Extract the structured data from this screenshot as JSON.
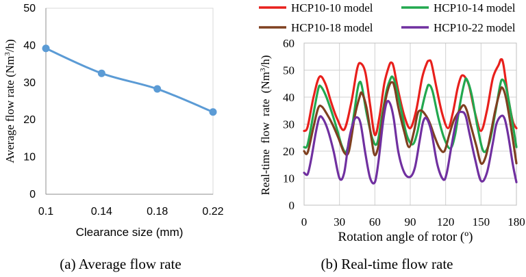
{
  "chart_data": [
    {
      "type": "line",
      "xlabel": "Clearance size (mm)",
      "ylabel": "Average flow rate (Nm³/h)",
      "ylabel_main": "Average flow rate (Nm",
      "ylabel_sup": "3",
      "ylabel_end": "/h)",
      "caption": "(a) Average flow rate",
      "categories": [
        "0.1",
        "0.14",
        "0.18",
        "0.22"
      ],
      "ylim": [
        0,
        50
      ],
      "yticks": [
        0,
        10,
        20,
        30,
        40,
        50
      ],
      "series": [
        {
          "name": "Average flow rate",
          "values": [
            39.2,
            32.5,
            28.3,
            22.1
          ],
          "color": "#5b9bd5"
        }
      ]
    },
    {
      "type": "line",
      "xlabel": "Rotation angle of rotor (º)",
      "ylabel": "Real-time flow rate (Nm³/h)",
      "ylabel_main": "Real-time  flow  rate  (Nm",
      "ylabel_sup": "3",
      "ylabel_end": "/h)",
      "caption": "(b) Real-time flow rate",
      "xlim": [
        0,
        180
      ],
      "xticks": [
        0,
        30,
        60,
        90,
        120,
        150,
        180
      ],
      "ylim": [
        0,
        60
      ],
      "yticks": [
        0,
        10,
        20,
        30,
        40,
        50,
        60
      ],
      "series": [
        {
          "name": "HCP10-10 model",
          "color": "#e8201c",
          "x": [
            0,
            3,
            8,
            13,
            18,
            23,
            28,
            34,
            40,
            45,
            48,
            52,
            56,
            60,
            64,
            68,
            72,
            74,
            76,
            80,
            85,
            90,
            95,
            100,
            104,
            106,
            108,
            112,
            117,
            122,
            126,
            130,
            133,
            135,
            137,
            140,
            145,
            150,
            155,
            160,
            165,
            167,
            169,
            173,
            177,
            180
          ],
          "y": [
            27.5,
            29,
            40,
            47.5,
            45,
            38,
            32,
            28,
            38,
            50.5,
            52.5,
            49,
            37,
            26,
            33,
            45,
            51.5,
            52.8,
            51,
            42,
            33,
            28.5,
            35,
            47,
            52.5,
            53.5,
            52.5,
            44,
            34,
            28.5,
            34,
            43,
            47.5,
            48,
            47,
            44,
            34,
            27.5,
            35,
            47,
            52,
            54,
            52,
            40,
            31,
            28.5
          ]
        },
        {
          "name": "HCP10-14 model",
          "color": "#22a84f",
          "x": [
            0,
            3,
            8,
            12,
            14,
            18,
            23,
            28,
            32,
            36,
            41,
            45,
            47,
            49,
            53,
            58,
            62,
            66,
            70,
            73,
            75,
            78,
            82,
            87,
            92,
            96,
            100,
            104,
            106,
            109,
            114,
            119,
            124,
            128,
            132,
            136,
            138,
            142,
            147,
            152,
            157,
            162,
            166,
            168,
            171,
            175,
            180
          ],
          "y": [
            21.5,
            22.5,
            34,
            43,
            44,
            41,
            35,
            28,
            22,
            20,
            30,
            42,
            45.5,
            44,
            34,
            24.5,
            23,
            33,
            42.5,
            46.5,
            47.5,
            44,
            36,
            26,
            22.5,
            27,
            36,
            43,
            44.5,
            42,
            32,
            24.5,
            21,
            26,
            37,
            45.5,
            46.5,
            41,
            29,
            20,
            23,
            34,
            44,
            46.5,
            44,
            35,
            21.5
          ]
        },
        {
          "name": "HCP10-18 model",
          "color": "#7f4020",
          "x": [
            0,
            3,
            8,
            12,
            15,
            19,
            24,
            29,
            34,
            38,
            43,
            47,
            49,
            53,
            57,
            60,
            64,
            68,
            72,
            75,
            77,
            80,
            85,
            89,
            93,
            96,
            98,
            101,
            106,
            111,
            115,
            119,
            123,
            127,
            131,
            135,
            138,
            141,
            146,
            150,
            154,
            158,
            162,
            166,
            168,
            171,
            175,
            180
          ],
          "y": [
            20,
            19.5,
            29,
            36,
            36.5,
            34,
            30,
            25,
            19.5,
            20,
            33,
            40,
            41.5,
            36,
            25,
            18.5,
            24,
            36.5,
            44,
            45.5,
            43,
            36,
            27,
            21.5,
            27,
            33.5,
            35,
            34.5,
            31,
            25,
            21,
            20,
            26,
            31.5,
            34.5,
            37,
            35,
            30,
            22,
            15.5,
            18,
            26,
            35,
            42,
            43.5,
            40,
            30,
            15.5
          ]
        },
        {
          "name": "HCP10-22 model",
          "color": "#7030a0",
          "x": [
            0,
            3,
            6,
            10,
            13,
            16,
            20,
            25,
            30,
            34,
            38,
            42,
            45,
            48,
            52,
            56,
            60,
            63,
            67,
            70,
            73,
            76,
            80,
            85,
            90,
            94,
            98,
            101,
            104,
            108,
            113,
            118,
            121,
            125,
            130,
            134,
            137,
            140,
            145,
            150,
            155,
            160,
            163,
            167,
            170,
            173,
            177,
            180
          ],
          "y": [
            12,
            11.5,
            17,
            27,
            32.5,
            32,
            28,
            20,
            10,
            12,
            24,
            31,
            32.5,
            30,
            19,
            10,
            8.5,
            16,
            31,
            38,
            37.5,
            32,
            19.5,
            12,
            10.5,
            14,
            24,
            31,
            32,
            27,
            15,
            9.5,
            12,
            22,
            33,
            34.5,
            33,
            27,
            17,
            9,
            12,
            23,
            30,
            33,
            32,
            26,
            15,
            8.5
          ]
        }
      ]
    }
  ]
}
